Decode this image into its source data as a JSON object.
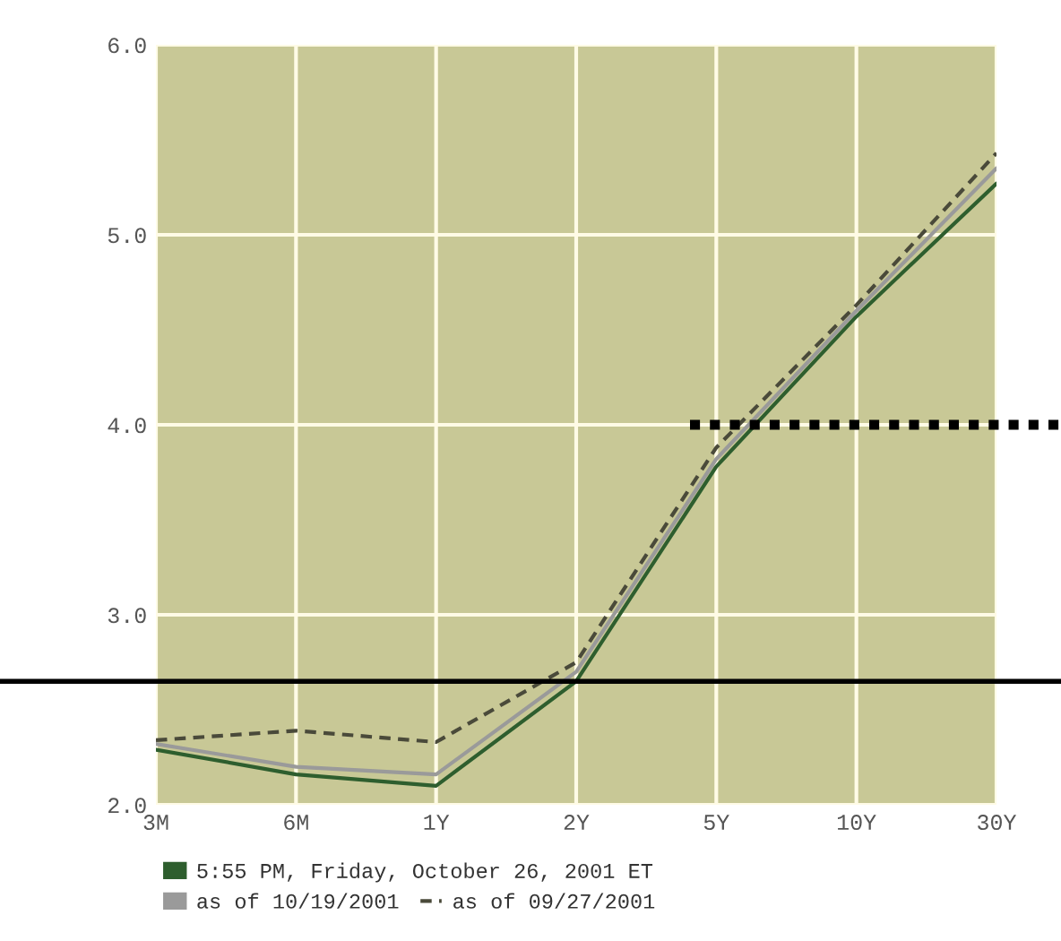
{
  "chart_data": {
    "type": "line",
    "categories": [
      "3M",
      "6M",
      "1Y",
      "2Y",
      "5Y",
      "10Y",
      "30Y"
    ],
    "series": [
      {
        "name": "5:55 PM, Friday, October 26, 2001 ET",
        "color": "#2e5e2e",
        "line_style": "solid",
        "values": [
          2.29,
          2.16,
          2.1,
          2.65,
          3.78,
          4.57,
          5.27
        ]
      },
      {
        "name": "as of 10/19/2001",
        "color": "#9a9a9a",
        "line_style": "solid",
        "values": [
          2.32,
          2.2,
          2.16,
          2.7,
          3.82,
          4.6,
          5.35
        ]
      },
      {
        "name": "as of 09/27/2001",
        "color": "#4a4a3a",
        "line_style": "dashed",
        "values": [
          2.34,
          2.39,
          2.33,
          2.75,
          3.88,
          4.63,
          5.43
        ]
      }
    ],
    "ylim": [
      2,
      6
    ],
    "yticks": [
      {
        "value": 2,
        "label": "2.0"
      },
      {
        "value": 3,
        "label": "3.0"
      },
      {
        "value": 4,
        "label": "4.0"
      },
      {
        "value": 5,
        "label": "5.0"
      },
      {
        "value": 6,
        "label": "6.0"
      }
    ],
    "ref_lines": [
      {
        "axis": "y",
        "value": 2.65,
        "color": "#000000",
        "line_style": "solid"
      },
      {
        "axis": "y",
        "value": 4.0,
        "color": "#000000",
        "line_style": "dotted"
      }
    ],
    "grid": true,
    "legend": "bottom",
    "marker": "none"
  }
}
